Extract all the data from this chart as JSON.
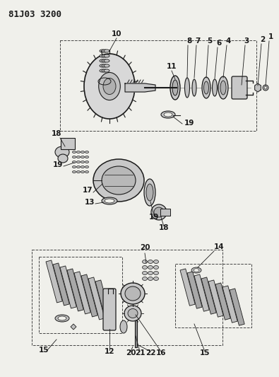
{
  "title": "81J03 3200",
  "bg_color": "#f0f0eb",
  "line_color": "#1a1a1a",
  "fig_w": 3.95,
  "fig_h": 5.33,
  "dpi": 100
}
